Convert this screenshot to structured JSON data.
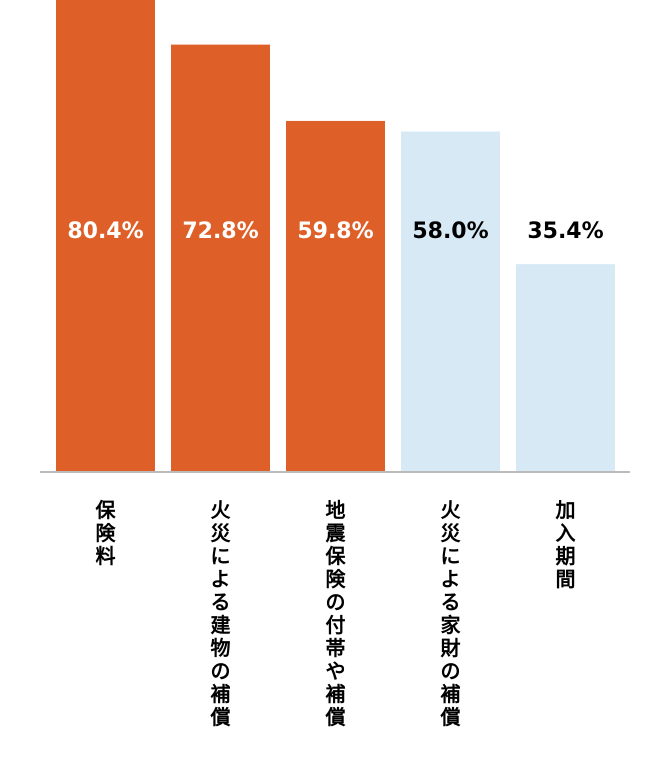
{
  "chart_data": {
    "type": "bar",
    "title": "",
    "xlabel": "",
    "ylabel": "",
    "ylim": [
      0,
      80.4
    ],
    "grid": false,
    "legend": "none",
    "value_suffix": "%",
    "categories": [
      "保険料",
      "火災による建物の補償",
      "地震保険の付帯や補償",
      "火災による家財の補償",
      "加入期間"
    ],
    "values": [
      80.4,
      72.8,
      59.8,
      58.0,
      35.4
    ],
    "value_labels": [
      "80.4%",
      "72.8%",
      "59.8%",
      "58.0%",
      "35.4%"
    ],
    "highlighted": [
      true,
      true,
      true,
      false,
      false
    ]
  },
  "colors": {
    "highlight_bar": "#de5f28",
    "muted_bar": "#d6e9f5",
    "highlight_label": "#ffffff",
    "muted_label": "#000000",
    "axis": "#bbbbbb"
  }
}
